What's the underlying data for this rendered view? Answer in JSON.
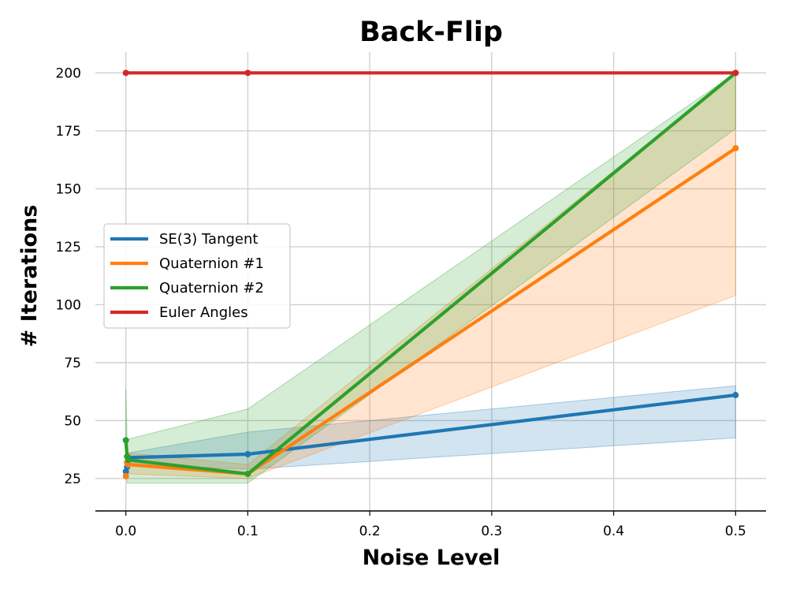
{
  "chart_data": {
    "type": "line",
    "title": "Back-Flip",
    "xlabel": "Noise Level",
    "ylabel": "# Iterations",
    "xlim": [
      -0.025,
      0.525
    ],
    "ylim": [
      11,
      209
    ],
    "xticks": [
      0.0,
      0.1,
      0.2,
      0.3,
      0.4,
      0.5
    ],
    "xtick_labels": [
      "0.0",
      "0.1",
      "0.2",
      "0.3",
      "0.4",
      "0.5"
    ],
    "yticks": [
      25,
      50,
      75,
      100,
      125,
      150,
      175,
      200
    ],
    "ytick_labels": [
      "25",
      "50",
      "75",
      "100",
      "125",
      "150",
      "175",
      "200"
    ],
    "grid": true,
    "legend_position": "center-left",
    "series": [
      {
        "name": "SE(3) Tangent",
        "color": "#1f77b4",
        "x": [
          0.0,
          0.001,
          0.002,
          0.1,
          0.5
        ],
        "y": [
          28,
          30,
          34,
          35.5,
          61
        ],
        "lower": [
          27,
          28,
          31,
          29,
          42.5
        ],
        "upper": [
          30,
          32,
          36,
          45,
          65
        ]
      },
      {
        "name": "Quaternion #1",
        "color": "#ff7f0e",
        "x": [
          0.0,
          0.001,
          0.002,
          0.1,
          0.5
        ],
        "y": [
          26,
          32,
          31,
          27,
          167.5
        ],
        "lower": [
          25,
          27,
          27,
          25,
          104
        ],
        "upper": [
          28,
          37,
          36,
          31,
          200
        ]
      },
      {
        "name": "Quaternion #2",
        "color": "#2ca02c",
        "x": [
          0.0,
          0.001,
          0.002,
          0.1,
          0.5
        ],
        "y": [
          41.5,
          34.5,
          33,
          27,
          200
        ],
        "lower": [
          32,
          23,
          23,
          23,
          176
        ],
        "upper": [
          63.5,
          42,
          42,
          55,
          200
        ]
      },
      {
        "name": "Euler Angles",
        "color": "#d62728",
        "x": [
          0.0,
          0.1,
          0.5
        ],
        "y": [
          200,
          200,
          200
        ],
        "lower": [
          200,
          200,
          200
        ],
        "upper": [
          200,
          200,
          200
        ]
      }
    ]
  }
}
